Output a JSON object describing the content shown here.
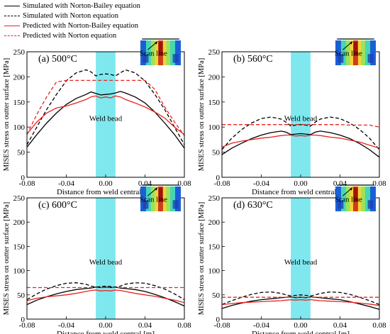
{
  "legend": [
    {
      "label": "Simulated with Norton-Bailey equation",
      "color": "#000000",
      "dash": false
    },
    {
      "label": "Simulated with Norton equation",
      "color": "#000000",
      "dash": true
    },
    {
      "label": "Predicted with Norton-Bailey equation",
      "color": "#e8231f",
      "dash": false
    },
    {
      "label": "Predicted with Norton equation",
      "color": "#e8231f",
      "dash": true
    }
  ],
  "weld_color": "#7fe8ee",
  "chart_data": [
    {
      "type": "line",
      "panel_label": "(a) 500°C",
      "weld_label": "Weld bead",
      "inset_label": "Scan line",
      "xlabel": "Distance from weld central [m]",
      "ylabel": "MISES stress on outter surface [MPa]",
      "xlim": [
        -0.08,
        0.08
      ],
      "ylim": [
        0,
        250
      ],
      "xticks": [
        -0.08,
        -0.04,
        0.0,
        0.04,
        0.08
      ],
      "yticks": [
        0,
        50,
        100,
        150,
        200,
        250
      ],
      "weld_bead": [
        -0.01,
        0.01
      ],
      "series": [
        {
          "name": "Simulated with Norton-Bailey equation",
          "color": "#000000",
          "dash": false,
          "x": [
            -0.08,
            -0.07,
            -0.06,
            -0.05,
            -0.04,
            -0.03,
            -0.02,
            -0.015,
            -0.01,
            -0.005,
            0,
            0.005,
            0.01,
            0.015,
            0.02,
            0.03,
            0.04,
            0.05,
            0.06,
            0.07,
            0.08
          ],
          "y": [
            60,
            85,
            108,
            128,
            145,
            157,
            165,
            170,
            167,
            164,
            165,
            166,
            168,
            171,
            168,
            160,
            148,
            130,
            108,
            85,
            58
          ]
        },
        {
          "name": "Simulated with Norton equation",
          "color": "#000000",
          "dash": true,
          "x": [
            -0.08,
            -0.07,
            -0.06,
            -0.05,
            -0.04,
            -0.03,
            -0.02,
            -0.015,
            -0.01,
            -0.005,
            0,
            0.005,
            0.01,
            0.015,
            0.02,
            0.03,
            0.04,
            0.05,
            0.06,
            0.07,
            0.08
          ],
          "y": [
            65,
            100,
            135,
            165,
            192,
            208,
            214,
            210,
            202,
            205,
            206,
            205,
            202,
            208,
            214,
            208,
            192,
            165,
            135,
            100,
            65
          ]
        },
        {
          "name": "Predicted with Norton-Bailey equation",
          "color": "#e8231f",
          "dash": false,
          "x": [
            -0.08,
            -0.07,
            -0.06,
            -0.05,
            -0.04,
            -0.03,
            -0.02,
            -0.015,
            -0.01,
            -0.005,
            0,
            0.005,
            0.01,
            0.015,
            0.02,
            0.03,
            0.04,
            0.05,
            0.06,
            0.07,
            0.08
          ],
          "y": [
            86,
            110,
            128,
            138,
            142,
            148,
            155,
            160,
            162,
            158,
            160,
            158,
            162,
            160,
            155,
            148,
            140,
            130,
            118,
            100,
            85
          ]
        },
        {
          "name": "Predicted with Norton equation",
          "color": "#e8231f",
          "dash": true,
          "x": [
            -0.08,
            -0.07,
            -0.06,
            -0.05,
            -0.04,
            -0.03,
            -0.02,
            0,
            0.02,
            0.03,
            0.04,
            0.05,
            0.06,
            0.07,
            0.08
          ],
          "y": [
            85,
            125,
            160,
            190,
            193,
            193,
            193,
            193,
            193,
            193,
            193,
            175,
            140,
            110,
            83
          ]
        }
      ]
    },
    {
      "type": "line",
      "panel_label": "(b) 560°C",
      "weld_label": "Weld bead",
      "inset_label": "Scan line",
      "xlabel": "Distance from weld central [m]",
      "ylabel": "MISES stress on outter surface [MPa]",
      "xlim": [
        -0.08,
        0.08
      ],
      "ylim": [
        0,
        250
      ],
      "xticks": [
        -0.08,
        -0.04,
        0.0,
        0.04,
        0.08
      ],
      "yticks": [
        0,
        50,
        100,
        150,
        200,
        250
      ],
      "weld_bead": [
        -0.01,
        0.01
      ],
      "series": [
        {
          "name": "Simulated with Norton-Bailey equation",
          "color": "#000000",
          "dash": false,
          "x": [
            -0.08,
            -0.07,
            -0.06,
            -0.05,
            -0.04,
            -0.03,
            -0.02,
            -0.015,
            -0.01,
            -0.005,
            0,
            0.005,
            0.01,
            0.015,
            0.02,
            0.03,
            0.04,
            0.05,
            0.06,
            0.07,
            0.08
          ],
          "y": [
            45,
            58,
            68,
            77,
            84,
            89,
            92,
            90,
            85,
            86,
            87,
            86,
            85,
            90,
            92,
            89,
            84,
            77,
            67,
            55,
            40
          ]
        },
        {
          "name": "Simulated with Norton equation",
          "color": "#000000",
          "dash": true,
          "x": [
            -0.08,
            -0.07,
            -0.06,
            -0.05,
            -0.04,
            -0.03,
            -0.02,
            -0.015,
            -0.01,
            -0.005,
            0,
            0.005,
            0.01,
            0.015,
            0.02,
            0.03,
            0.04,
            0.05,
            0.06,
            0.07,
            0.08
          ],
          "y": [
            55,
            78,
            95,
            108,
            117,
            120,
            116,
            110,
            102,
            104,
            105,
            104,
            102,
            110,
            116,
            120,
            117,
            108,
            95,
            78,
            55
          ]
        },
        {
          "name": "Predicted with Norton-Bailey equation",
          "color": "#e8231f",
          "dash": false,
          "x": [
            -0.08,
            -0.07,
            -0.06,
            -0.05,
            -0.04,
            -0.03,
            -0.02,
            -0.015,
            -0.01,
            -0.005,
            0,
            0.005,
            0.01,
            0.015,
            0.02,
            0.03,
            0.04,
            0.05,
            0.06,
            0.07,
            0.08
          ],
          "y": [
            60,
            68,
            72,
            75,
            78,
            80,
            83,
            84,
            84,
            82,
            83,
            82,
            84,
            84,
            83,
            80,
            78,
            74,
            70,
            64,
            58
          ]
        },
        {
          "name": "Predicted with Norton equation",
          "color": "#e8231f",
          "dash": true,
          "x": [
            -0.08,
            -0.07,
            -0.06,
            -0.05,
            -0.04,
            -0.03,
            -0.02,
            0,
            0.02,
            0.03,
            0.04,
            0.05,
            0.06,
            0.07,
            0.08
          ],
          "y": [
            105,
            105,
            105,
            105,
            105,
            105,
            105,
            105,
            105,
            105,
            105,
            104,
            104,
            104,
            100
          ]
        }
      ]
    },
    {
      "type": "line",
      "panel_label": "(c) 600°C",
      "weld_label": "Weld bead",
      "inset_label": "Scan line",
      "xlabel": "Distance from weld central [m]",
      "ylabel": "MISES stress on outter surface [MPa]",
      "xlim": [
        -0.08,
        0.08
      ],
      "ylim": [
        0,
        250
      ],
      "xticks": [
        -0.08,
        -0.04,
        0.0,
        0.04,
        0.08
      ],
      "yticks": [
        0,
        50,
        100,
        150,
        200,
        250
      ],
      "weld_bead": [
        -0.01,
        0.01
      ],
      "series": [
        {
          "name": "Simulated with Norton-Bailey equation",
          "color": "#000000",
          "dash": false,
          "x": [
            -0.08,
            -0.07,
            -0.06,
            -0.05,
            -0.04,
            -0.03,
            -0.02,
            -0.015,
            -0.01,
            -0.005,
            0,
            0.005,
            0.01,
            0.015,
            0.02,
            0.03,
            0.04,
            0.05,
            0.06,
            0.07,
            0.08
          ],
          "y": [
            30,
            39,
            46,
            52,
            57,
            61,
            63,
            64,
            66,
            65,
            66,
            65,
            66,
            64,
            63,
            61,
            57,
            51,
            44,
            36,
            27
          ]
        },
        {
          "name": "Simulated with Norton equation",
          "color": "#000000",
          "dash": true,
          "x": [
            -0.08,
            -0.07,
            -0.06,
            -0.05,
            -0.04,
            -0.03,
            -0.02,
            -0.015,
            -0.01,
            -0.005,
            0,
            0.005,
            0.01,
            0.015,
            0.02,
            0.03,
            0.04,
            0.05,
            0.06,
            0.07,
            0.08
          ],
          "y": [
            40,
            52,
            62,
            69,
            74,
            75,
            72,
            68,
            66,
            67,
            68,
            67,
            66,
            68,
            72,
            75,
            74,
            69,
            62,
            52,
            40
          ]
        },
        {
          "name": "Predicted with Norton-Bailey equation",
          "color": "#e8231f",
          "dash": false,
          "x": [
            -0.08,
            -0.07,
            -0.06,
            -0.05,
            -0.04,
            -0.03,
            -0.02,
            -0.015,
            -0.01,
            -0.005,
            0,
            0.005,
            0.01,
            0.015,
            0.02,
            0.03,
            0.04,
            0.05,
            0.06,
            0.07,
            0.08
          ],
          "y": [
            38,
            43,
            46,
            48,
            50,
            53,
            57,
            59,
            60,
            58,
            59,
            58,
            60,
            59,
            57,
            53,
            50,
            47,
            43,
            39,
            34
          ]
        },
        {
          "name": "Predicted with Norton equation",
          "color": "#e8231f",
          "dash": true,
          "x": [
            -0.08,
            -0.04,
            0,
            0.04,
            0.08
          ],
          "y": [
            65,
            65,
            65,
            65,
            65
          ]
        }
      ]
    },
    {
      "type": "line",
      "panel_label": "(d) 630°C",
      "weld_label": "Weld bead",
      "inset_label": "Scan line",
      "xlabel": "Distance from weld central [m]",
      "ylabel": "MISES stress on outter surface [MPa]",
      "xlim": [
        -0.08,
        0.08
      ],
      "ylim": [
        0,
        250
      ],
      "xticks": [
        -0.08,
        -0.04,
        0.0,
        0.04,
        0.08
      ],
      "yticks": [
        0,
        50,
        100,
        150,
        200,
        250
      ],
      "weld_bead": [
        -0.01,
        0.01
      ],
      "series": [
        {
          "name": "Simulated with Norton-Bailey equation",
          "color": "#000000",
          "dash": false,
          "x": [
            -0.08,
            -0.07,
            -0.06,
            -0.05,
            -0.04,
            -0.03,
            -0.02,
            -0.015,
            -0.01,
            -0.005,
            0,
            0.005,
            0.01,
            0.015,
            0.02,
            0.03,
            0.04,
            0.05,
            0.06,
            0.07,
            0.08
          ],
          "y": [
            22,
            28,
            33,
            37,
            40,
            42,
            44,
            45,
            46,
            44,
            45,
            44,
            46,
            45,
            44,
            42,
            40,
            36,
            31,
            26,
            20
          ]
        },
        {
          "name": "Simulated with Norton equation",
          "color": "#000000",
          "dash": true,
          "x": [
            -0.08,
            -0.07,
            -0.06,
            -0.05,
            -0.04,
            -0.03,
            -0.02,
            -0.015,
            -0.01,
            -0.005,
            0,
            0.005,
            0.01,
            0.015,
            0.02,
            0.03,
            0.04,
            0.05,
            0.06,
            0.07,
            0.08
          ],
          "y": [
            30,
            38,
            45,
            51,
            55,
            56,
            53,
            50,
            48,
            49,
            50,
            49,
            48,
            50,
            53,
            56,
            55,
            51,
            45,
            38,
            30
          ]
        },
        {
          "name": "Predicted with Norton-Bailey equation",
          "color": "#e8231f",
          "dash": false,
          "x": [
            -0.08,
            -0.07,
            -0.06,
            -0.05,
            -0.04,
            -0.03,
            -0.02,
            -0.015,
            -0.01,
            -0.005,
            0,
            0.005,
            0.01,
            0.015,
            0.02,
            0.03,
            0.04,
            0.05,
            0.06,
            0.07,
            0.08
          ],
          "y": [
            30,
            32,
            34,
            35,
            36,
            37,
            38,
            39,
            40,
            39,
            40,
            39,
            40,
            39,
            38,
            37,
            36,
            35,
            33,
            31,
            28
          ]
        },
        {
          "name": "Predicted with Norton equation",
          "color": "#e8231f",
          "dash": true,
          "x": [
            -0.08,
            -0.04,
            0,
            0.04,
            0.08
          ],
          "y": [
            45,
            45,
            45,
            45,
            45
          ]
        }
      ]
    }
  ]
}
